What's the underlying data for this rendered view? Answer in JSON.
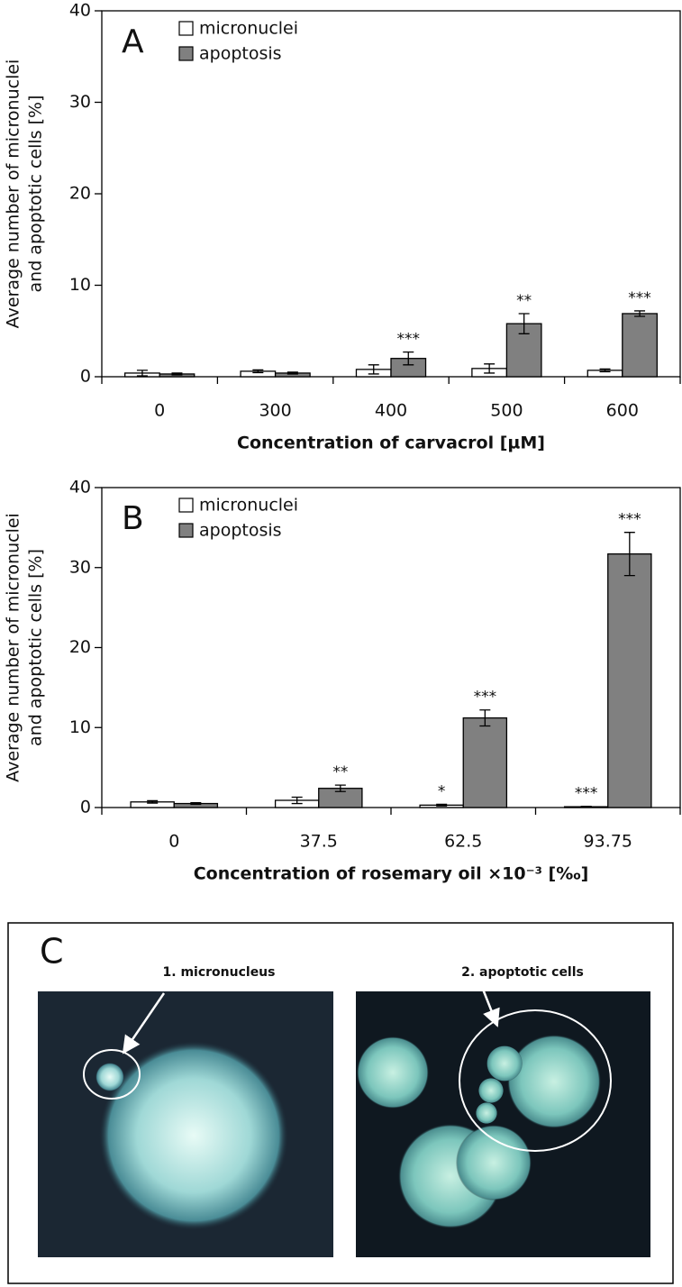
{
  "chart_data": [
    {
      "type": "bar",
      "panel_label": "A",
      "ylabel": [
        "Average number of micronuclei",
        "and apoptotic cells [%]"
      ],
      "xlabel": "Concentration of carvacrol [µM]",
      "categories": [
        "0",
        "300",
        "400",
        "500",
        "600"
      ],
      "series": [
        {
          "name": "micronuclei",
          "color": "#ffffff",
          "values": [
            0.4,
            0.6,
            0.8,
            0.9,
            0.7
          ],
          "errors": [
            0.3,
            0.15,
            0.5,
            0.5,
            0.15
          ],
          "significance": [
            null,
            null,
            null,
            null,
            null
          ]
        },
        {
          "name": "apoptosis",
          "color": "#808080",
          "values": [
            0.3,
            0.4,
            2.0,
            5.8,
            6.9
          ],
          "errors": [
            0.1,
            0.1,
            0.7,
            1.1,
            0.3
          ],
          "significance": [
            null,
            null,
            "***",
            "**",
            "***"
          ]
        }
      ],
      "ylim": [
        0,
        40
      ],
      "yticks": [
        0,
        10,
        20,
        30,
        40
      ],
      "legend": "upper-left"
    },
    {
      "type": "bar",
      "panel_label": "B",
      "ylabel": [
        "Average number of micronuclei",
        "and apoptotic cells [%]"
      ],
      "xlabel": "Concentration of rosemary oil ×10⁻³ [‰]",
      "categories": [
        "0",
        "37.5",
        "62.5",
        "93.75"
      ],
      "series": [
        {
          "name": "micronuclei",
          "color": "#ffffff",
          "values": [
            0.7,
            0.9,
            0.3,
            0.1
          ],
          "errors": [
            0.15,
            0.4,
            0.1,
            0.05
          ],
          "significance": [
            null,
            null,
            "*",
            "***"
          ]
        },
        {
          "name": "apoptosis",
          "color": "#808080",
          "values": [
            0.5,
            2.4,
            11.2,
            31.7
          ],
          "errors": [
            0.1,
            0.4,
            1.0,
            2.7
          ],
          "significance": [
            null,
            "**",
            "***",
            "***"
          ]
        }
      ],
      "ylim": [
        0,
        40
      ],
      "yticks": [
        0,
        10,
        20,
        30,
        40
      ],
      "legend": "upper-left"
    }
  ],
  "panel_c": {
    "label": "C",
    "captions": [
      "1. micronucleus",
      "2. apoptotic cells"
    ]
  }
}
